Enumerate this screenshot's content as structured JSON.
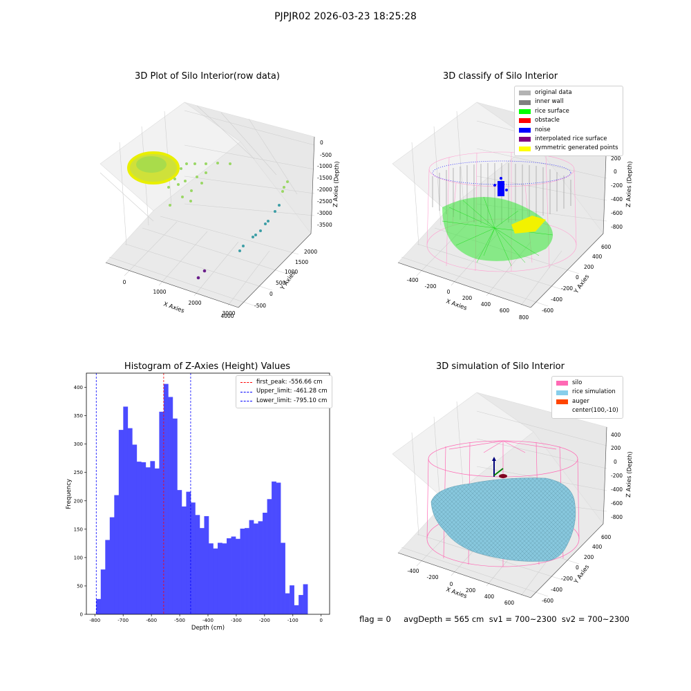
{
  "suptitle": "PJPJR02 2026-03-23 18:25:28",
  "plots": {
    "raw": {
      "title": "3D Plot of Silo Interior(row data)",
      "xlabel": "X Axies",
      "ylabel": "Y Axies",
      "zlabel": "Z Axies (Depth)",
      "xticks": [
        "0",
        "1000",
        "2000",
        "3000",
        "4000"
      ],
      "yticks": [
        "-500",
        "0",
        "500",
        "1000",
        "1500",
        "2000"
      ],
      "zticks": [
        "0",
        "-500",
        "-1000",
        "-1500",
        "-2000",
        "-2500",
        "-3000",
        "-3500"
      ]
    },
    "classify": {
      "title": "3D classify of Silo Interior",
      "xlabel": "X Axies",
      "ylabel": "Y Axies",
      "zlabel": "Z Axies (Depth)",
      "xticks": [
        "-400",
        "-200",
        "0",
        "200",
        "400",
        "600",
        "800"
      ],
      "yticks": [
        "-600",
        "-400",
        "-200",
        "0",
        "200",
        "400",
        "600"
      ],
      "zticks": [
        "200",
        "0",
        "-200",
        "-400",
        "-600",
        "-800"
      ],
      "legend": [
        {
          "label": "original data",
          "color": "#b3b3b3"
        },
        {
          "label": "inner wall",
          "color": "#808080"
        },
        {
          "label": "rice surface",
          "color": "#00ff00"
        },
        {
          "label": "obstacle",
          "color": "#ff0000"
        },
        {
          "label": "noise",
          "color": "#0000ff"
        },
        {
          "label": "interpolated rice surface",
          "color": "#800080"
        },
        {
          "label": "symmetric generated points",
          "color": "#ffff00"
        }
      ]
    },
    "simulation": {
      "title": "3D simulation of Silo Interior",
      "xlabel": "X Axies",
      "ylabel": "Y Axies",
      "zlabel": "Z Axies (Depth)",
      "xticks": [
        "-400",
        "-200",
        "0",
        "200",
        "400",
        "600"
      ],
      "yticks": [
        "-600",
        "-400",
        "-200",
        "0",
        "200",
        "400",
        "600"
      ],
      "zticks": [
        "400",
        "200",
        "0",
        "-200",
        "-400",
        "-600",
        "-800"
      ],
      "legend": [
        {
          "label": "silo",
          "color": "#ff69b4"
        },
        {
          "label": "rice simulation",
          "color": "#87ceeb"
        },
        {
          "label": "auger",
          "color": "#ff4500"
        },
        {
          "label": "center(100,-10)",
          "color": ""
        }
      ]
    }
  },
  "chart_data": {
    "type": "bar",
    "title": "Histogram of Z-Axies (Height) Values",
    "xlabel": "Depth (cm)",
    "ylabel": "Frequency",
    "xlim": [
      -830,
      30
    ],
    "ylim": [
      0,
      425
    ],
    "xticks": [
      -800,
      -700,
      -600,
      -500,
      -400,
      -300,
      -200,
      -100,
      0
    ],
    "yticks": [
      0,
      50,
      100,
      150,
      200,
      250,
      300,
      350,
      400
    ],
    "bin_start": -795.1,
    "bin_width": 15.9,
    "values": [
      27,
      79,
      131,
      171,
      210,
      325,
      366,
      328,
      299,
      269,
      268,
      259,
      270,
      257,
      357,
      406,
      383,
      345,
      219,
      190,
      216,
      197,
      175,
      152,
      173,
      125,
      116,
      126,
      125,
      134,
      137,
      133,
      151,
      152,
      166,
      160,
      164,
      179,
      203,
      234,
      232,
      126,
      37,
      51,
      16,
      34,
      53
    ],
    "bar_color": "#4b4bff",
    "lines": [
      {
        "label": "first_peak: -556.66 cm",
        "x": -556.66,
        "color": "#ff0000"
      },
      {
        "label": "Upper_limit: -461.28 cm",
        "x": -461.28,
        "color": "#0000ff"
      },
      {
        "label": "Lower_limit: -795.10 cm",
        "x": -795.1,
        "color": "#0000ff"
      }
    ],
    "legend_position": "upper right"
  },
  "footer": {
    "text": "flag = 0     avgDepth = 565 cm  sv1 = 700~2300  sv2 = 700~2300"
  }
}
